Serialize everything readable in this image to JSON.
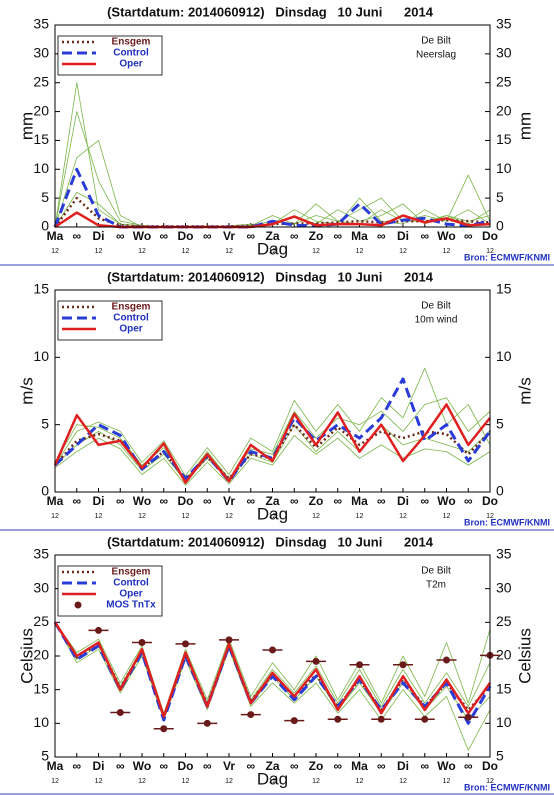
{
  "chart_data": [
    {
      "type": "line",
      "title": "(Startdatum: 2014060912)   Dinsdag   10 Juni      2014",
      "station": "De Bilt",
      "variable": "Neerslag",
      "ylabel": "mm",
      "xlabel": "Dag",
      "source": "Bron: ECMWF/KNMI",
      "categories": [
        "Ma",
        "∞",
        "Di",
        "∞",
        "Wo",
        "∞",
        "Do",
        "∞",
        "Vr",
        "∞",
        "Za",
        "∞",
        "Zo",
        "∞",
        "Ma",
        "∞",
        "Di",
        "∞",
        "Wo",
        "∞",
        "Do"
      ],
      "hour_labels": [
        "12",
        null,
        "12",
        null,
        "12",
        null,
        "12",
        null,
        "12",
        null,
        "12",
        null,
        "12",
        null,
        "12",
        null,
        "12",
        null,
        "12",
        null,
        "12"
      ],
      "ylim": [
        0,
        35
      ],
      "yticks": [
        0,
        5,
        10,
        15,
        20,
        25,
        30,
        35
      ],
      "members_color": "#7ab648",
      "members": [
        [
          0,
          25,
          3,
          0.5,
          0.2,
          0,
          0,
          0,
          0,
          0.3,
          1,
          0.5,
          2,
          1,
          3,
          5,
          1,
          2,
          1,
          3,
          0.5
        ],
        [
          0,
          20,
          8,
          1,
          0.3,
          0,
          0,
          0,
          0.2,
          0.5,
          0.3,
          2,
          0.5,
          3,
          1,
          2,
          4,
          0.5,
          2,
          1,
          2
        ],
        [
          0,
          12,
          15,
          2,
          0,
          0,
          0,
          0,
          0,
          0,
          0.5,
          3,
          1,
          0.5,
          5,
          1,
          0.5,
          3,
          1,
          9,
          1
        ],
        [
          0,
          6,
          4,
          0.5,
          0.2,
          0,
          0,
          0,
          0,
          0.2,
          2,
          0.5,
          4,
          1,
          0.5,
          3,
          1,
          1,
          2,
          0.5,
          3
        ]
      ],
      "series": [
        {
          "name": "Ensgem",
          "color": "#6b2a1a",
          "style": "dotted",
          "values": [
            0,
            5,
            1.5,
            0.3,
            0.1,
            0.1,
            0.1,
            0.1,
            0.1,
            0.2,
            0.5,
            0.6,
            0.6,
            0.8,
            1,
            0.8,
            1,
            1,
            1.2,
            1,
            0.8
          ]
        },
        {
          "name": "Control",
          "color": "#2a3cd8",
          "style": "dashed",
          "values": [
            0,
            10,
            2,
            0,
            0,
            0,
            0,
            0,
            0,
            0,
            1,
            0.3,
            0.2,
            0.5,
            4,
            0.5,
            1.2,
            1.5,
            0.5,
            0.2,
            1
          ]
        },
        {
          "name": "Oper",
          "color": "#e02020",
          "style": "solid",
          "values": [
            0,
            2.5,
            0.3,
            0,
            0,
            0,
            0,
            0,
            0,
            0,
            0.5,
            1.8,
            0.3,
            0.5,
            0.5,
            0.3,
            2,
            0.8,
            1.5,
            0.3,
            0.5
          ]
        }
      ]
    },
    {
      "type": "line",
      "title": "(Startdatum: 2014060912)   Dinsdag   10 Juni      2014",
      "station": "De Bilt",
      "variable": "10m wind",
      "ylabel": "m/s",
      "xlabel": "Dag",
      "source": "Bron: ECMWF/KNMI",
      "categories": [
        "Ma",
        "∞",
        "Di",
        "∞",
        "Wo",
        "∞",
        "Do",
        "∞",
        "Vr",
        "∞",
        "Za",
        "∞",
        "Zo",
        "∞",
        "Ma",
        "∞",
        "Di",
        "∞",
        "Wo",
        "∞",
        "Do"
      ],
      "hour_labels": [
        "12",
        null,
        "12",
        null,
        "12",
        null,
        "12",
        null,
        "12",
        null,
        "12",
        null,
        "12",
        null,
        "12",
        null,
        "12",
        null,
        "12",
        null,
        "12"
      ],
      "ylim": [
        0,
        15
      ],
      "yticks": [
        0,
        5,
        10,
        15
      ],
      "members_color": "#7ab648",
      "members": [
        [
          2,
          4.5,
          5.2,
          4.5,
          2.2,
          3.8,
          1.2,
          3.3,
          1.3,
          4,
          3,
          6.8,
          4.5,
          6.5,
          4.5,
          7,
          5.5,
          9.2,
          5,
          6.5,
          3.5
        ],
        [
          1.8,
          3,
          4,
          3.2,
          1.3,
          2.5,
          0.5,
          2.2,
          0.6,
          2.5,
          2,
          4.2,
          2.8,
          4,
          2.5,
          3.5,
          2.5,
          3.2,
          3,
          2,
          3
        ],
        [
          2.2,
          5,
          4.8,
          4,
          2,
          3.3,
          0.9,
          3,
          1,
          3.2,
          2.8,
          6,
          4,
          5.5,
          5,
          6,
          4.5,
          6.5,
          7,
          4.5,
          6
        ],
        [
          2,
          3.5,
          4.5,
          3.5,
          1.6,
          2.8,
          0.8,
          2.5,
          0.9,
          2.8,
          2.2,
          5,
          3,
          4.5,
          3,
          5,
          3.5,
          4,
          3.5,
          3,
          4.5
        ]
      ],
      "series": [
        {
          "name": "Ensgem",
          "color": "#6b2a1a",
          "style": "dotted",
          "values": [
            2.0,
            3.8,
            4.3,
            3.8,
            1.8,
            3.0,
            0.9,
            2.6,
            1.0,
            2.8,
            2.5,
            5.0,
            3.3,
            4.8,
            3.5,
            4.5,
            4.0,
            4.5,
            4.3,
            2.8,
            4.5
          ]
        },
        {
          "name": "Control",
          "color": "#2a3cd8",
          "style": "dashed",
          "values": [
            2.0,
            3.5,
            5.0,
            4.2,
            1.7,
            3.0,
            1.0,
            2.7,
            0.8,
            3.0,
            2.5,
            5.5,
            3.8,
            5.0,
            4.0,
            5.5,
            8.4,
            3.8,
            5.0,
            2.3,
            4.5
          ]
        },
        {
          "name": "Oper",
          "color": "#e02020",
          "style": "solid",
          "values": [
            2.0,
            5.7,
            3.5,
            3.8,
            1.8,
            3.6,
            0.7,
            2.8,
            0.8,
            3.5,
            2.3,
            5.8,
            3.5,
            5.9,
            3.0,
            5.0,
            2.3,
            4.2,
            6.5,
            3.5,
            5.5
          ]
        }
      ]
    },
    {
      "type": "line",
      "title": "(Startdatum: 2014060912)   Dinsdag   10 Juni      2014",
      "station": "De Bilt",
      "variable": "T2m",
      "ylabel": "Celsius",
      "xlabel": "Dag",
      "source": "Bron: ECMWF/KNMI",
      "categories": [
        "Ma",
        "∞",
        "Di",
        "∞",
        "Wo",
        "∞",
        "Do",
        "∞",
        "Vr",
        "∞",
        "Za",
        "∞",
        "Zo",
        "∞",
        "Ma",
        "∞",
        "Di",
        "∞",
        "Wo",
        "∞",
        "Do"
      ],
      "hour_labels": [
        "12",
        null,
        "12",
        null,
        "12",
        null,
        "12",
        null,
        "12",
        null,
        "12",
        null,
        "12",
        null,
        "12",
        null,
        "12",
        null,
        "12",
        null,
        "12"
      ],
      "ylim": [
        5,
        35
      ],
      "yticks": [
        5,
        10,
        15,
        20,
        25,
        30,
        35
      ],
      "members_color": "#7ab648",
      "members": [
        [
          25,
          20.5,
          22.5,
          16,
          21.5,
          11.5,
          21,
          13.5,
          22.5,
          14,
          19,
          15,
          20,
          13.5,
          19,
          13,
          20,
          14,
          22,
          13,
          24
        ],
        [
          25,
          19,
          21,
          14.5,
          20,
          10.5,
          19.5,
          12,
          21,
          12.5,
          16,
          13,
          16,
          11.5,
          15,
          10.5,
          15,
          11,
          14,
          6,
          12
        ],
        [
          25,
          20,
          22,
          15.5,
          21,
          11,
          20.5,
          13,
          22,
          13.5,
          18,
          14.5,
          18.5,
          13,
          18,
          12.5,
          18,
          13,
          17.5,
          12.5,
          19
        ],
        [
          25,
          19.5,
          21.5,
          15,
          20.5,
          10.8,
          20,
          12.5,
          21.5,
          12.8,
          17,
          13.5,
          17,
          12,
          16,
          11.5,
          16,
          12,
          15.5,
          10.5,
          14
        ]
      ],
      "series": [
        {
          "name": "Ensgem",
          "color": "#6b2a1a",
          "style": "dotted",
          "values": [
            25,
            19.8,
            21.8,
            15.3,
            20.8,
            11,
            20.2,
            12.8,
            21.5,
            13.3,
            17.2,
            14,
            17.2,
            12.5,
            16.5,
            12,
            16.5,
            12.5,
            16,
            12,
            15.5
          ]
        },
        {
          "name": "Control",
          "color": "#2a3cd8",
          "style": "dashed",
          "values": [
            25,
            19.5,
            21.5,
            15,
            20.5,
            10.5,
            20,
            12.5,
            21.5,
            13,
            17,
            13.5,
            17,
            12.5,
            16.5,
            12,
            16,
            12.5,
            16,
            10,
            15.5
          ]
        },
        {
          "name": "Oper",
          "color": "#e02020",
          "style": "solid",
          "values": [
            25,
            20,
            22,
            15,
            21,
            11,
            20.5,
            12.5,
            21.8,
            13,
            17.5,
            14,
            18,
            12,
            17,
            11.5,
            17,
            12,
            16.5,
            11.5,
            16
          ]
        },
        {
          "name": "MOS TnTx",
          "color": "#6b1a1a",
          "style": "dots",
          "values": [
            null,
            null,
            23.8,
            11.6,
            22.0,
            9.2,
            21.8,
            10.0,
            22.4,
            11.3,
            20.9,
            10.4,
            19.2,
            10.6,
            18.7,
            10.6,
            18.7,
            10.6,
            19.4,
            10.9,
            20.1
          ]
        }
      ]
    }
  ]
}
